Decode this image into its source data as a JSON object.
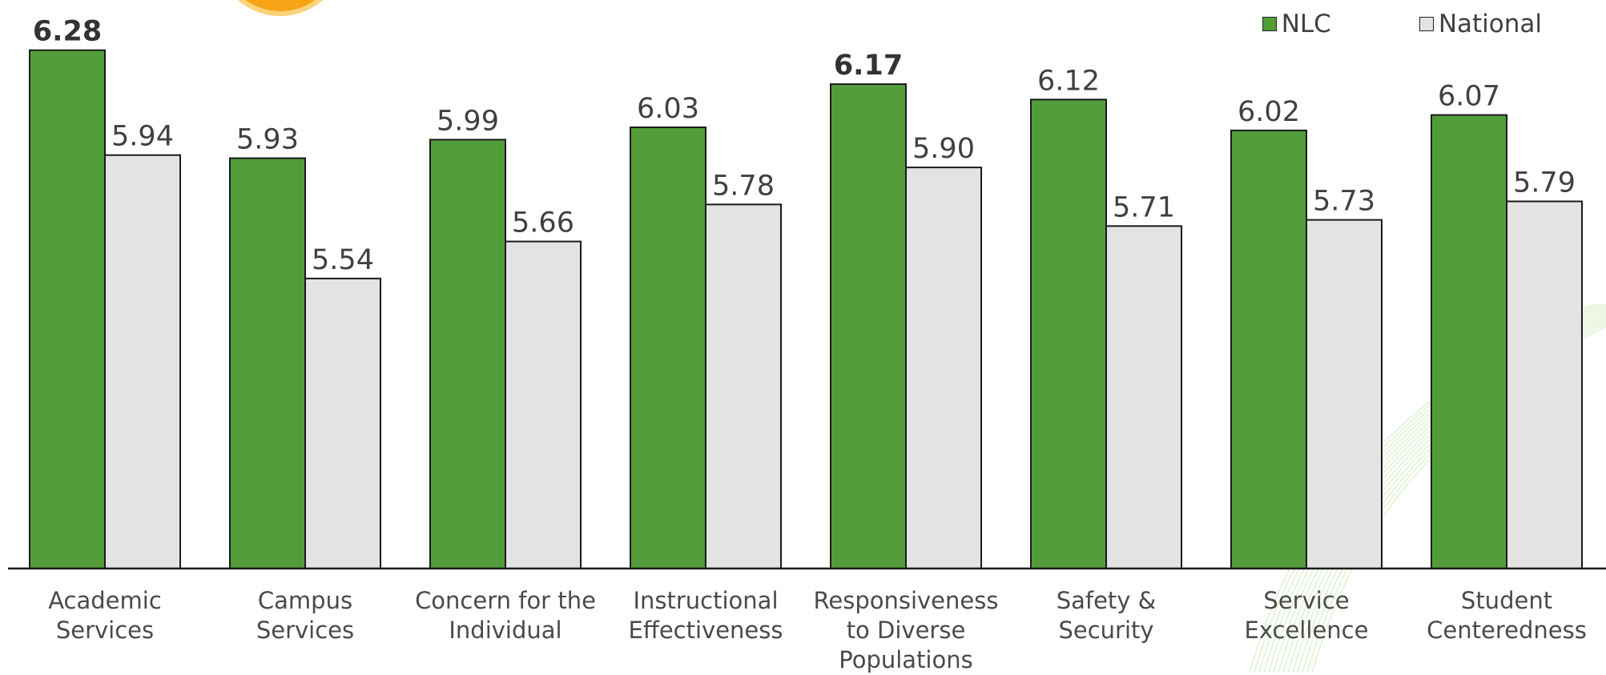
{
  "chart_data": {
    "type": "bar",
    "categories": [
      [
        "Academic",
        "Services"
      ],
      [
        "Campus",
        "Services"
      ],
      [
        "Concern for the",
        "Individual"
      ],
      [
        "Instructional",
        "Effectiveness"
      ],
      [
        "Responsiveness",
        "to Diverse",
        "Populations"
      ],
      [
        "Safety &",
        "Security"
      ],
      [
        "Service",
        "Excellence"
      ],
      [
        "Student",
        "Centeredness"
      ]
    ],
    "series": [
      {
        "name": "NLC",
        "values": [
          6.28,
          5.93,
          5.99,
          6.03,
          6.17,
          6.12,
          6.02,
          6.07
        ],
        "labels": [
          "6.28",
          "5.93",
          "5.99",
          "6.03",
          "6.17",
          "6.12",
          "6.02",
          "6.07"
        ],
        "bold": [
          true,
          false,
          false,
          false,
          true,
          false,
          false,
          false
        ],
        "color": "#529d3a"
      },
      {
        "name": "National",
        "values": [
          5.94,
          5.54,
          5.66,
          5.78,
          5.9,
          5.71,
          5.73,
          5.79
        ],
        "labels": [
          "5.94",
          "5.54",
          "5.66",
          "5.78",
          "5.90",
          "5.71",
          "5.73",
          "5.79"
        ],
        "color": "#e3e3e3"
      }
    ],
    "ylim": [
      4.6,
      6.3
    ],
    "legend": "top-right",
    "grid": false
  }
}
